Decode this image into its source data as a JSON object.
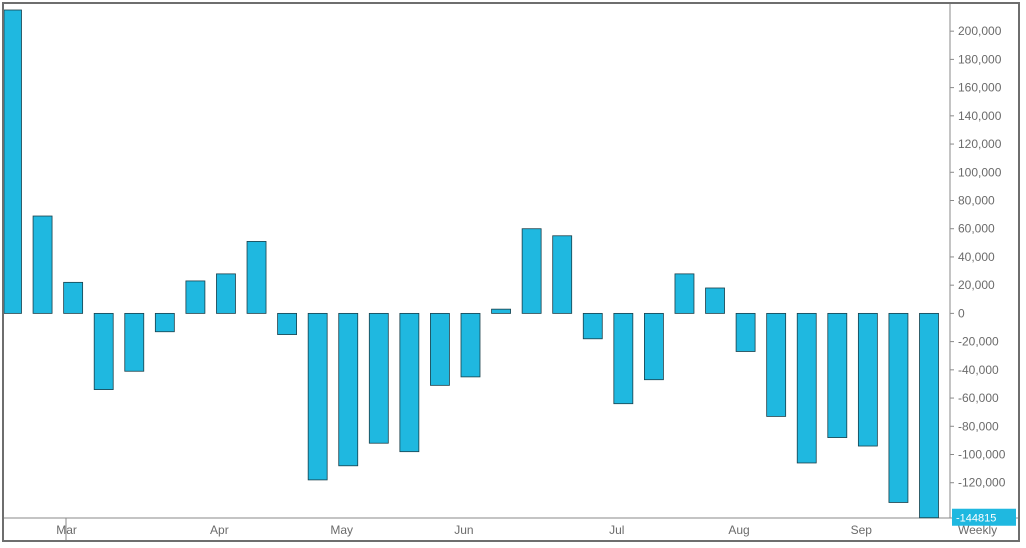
{
  "chart_data": {
    "type": "bar",
    "title": "",
    "xlabel": "",
    "ylabel": "",
    "period_label": "Weekly",
    "last_value_label": "-144815",
    "bar_color": "#1fb8e0",
    "bar_stroke": "#1a3f4a",
    "ylim": [
      -145000,
      215000
    ],
    "y_ticks": [
      200000,
      180000,
      160000,
      140000,
      120000,
      100000,
      80000,
      60000,
      40000,
      20000,
      0,
      -20000,
      -40000,
      -60000,
      -80000,
      -100000,
      -120000
    ],
    "y_tick_labels": [
      "200,000",
      "180,000",
      "160,000",
      "140,000",
      "120,000",
      "100,000",
      "80,000",
      "60,000",
      "40,000",
      "20,000",
      "0",
      "-20,000",
      "-40,000",
      "-60,000",
      "-80,000",
      "-100,000",
      "-120,000"
    ],
    "x_month_labels": [
      {
        "label": "Mar",
        "bar_index": 1
      },
      {
        "label": "Apr",
        "bar_index": 6
      },
      {
        "label": "May",
        "bar_index": 10
      },
      {
        "label": "Jun",
        "bar_index": 14
      },
      {
        "label": "Jul",
        "bar_index": 19
      },
      {
        "label": "Aug",
        "bar_index": 23
      },
      {
        "label": "Sep",
        "bar_index": 27
      }
    ],
    "values": [
      215000,
      69000,
      22000,
      -54000,
      -41000,
      -13000,
      23000,
      28000,
      51000,
      -15000,
      -118000,
      -108000,
      -92000,
      -98000,
      -51000,
      -45000,
      3000,
      60000,
      55000,
      -18000,
      -64000,
      -47000,
      28000,
      18000,
      -27000,
      -73000,
      -106000,
      -88000,
      -94000,
      -134000,
      -144815
    ]
  }
}
